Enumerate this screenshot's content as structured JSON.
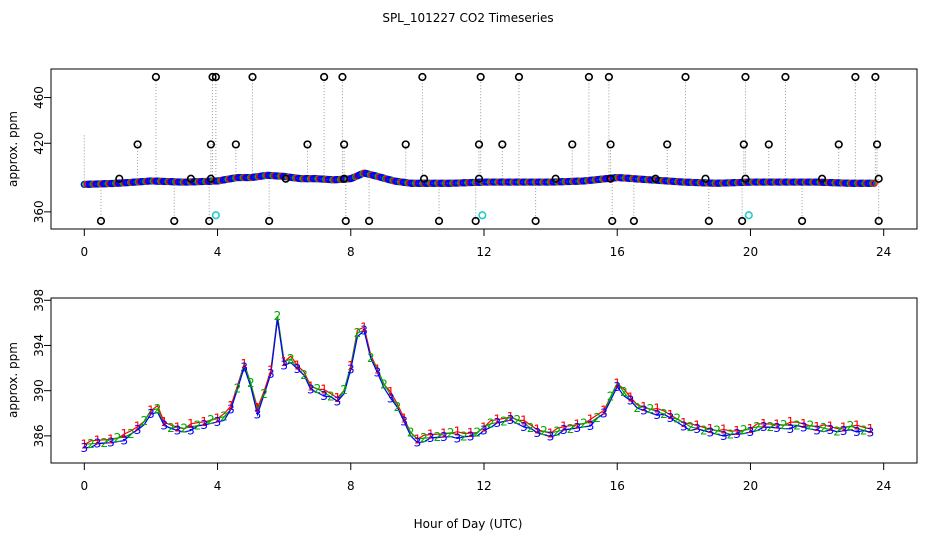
{
  "chart_data": [
    {
      "type": "scatter",
      "title": "SPL_101227  CO2 Timeseries",
      "ylabel": "approx. ppm",
      "xlim": [
        -1,
        25
      ],
      "ylim": [
        345,
        485
      ],
      "xticks": [
        0,
        4,
        8,
        12,
        16,
        20,
        24
      ],
      "yticks": [
        360,
        420,
        460
      ],
      "baseline": [
        [
          0,
          384
        ],
        [
          1,
          385
        ],
        [
          2,
          387
        ],
        [
          3,
          386
        ],
        [
          4,
          387
        ],
        [
          4.6,
          390
        ],
        [
          5,
          390
        ],
        [
          5.5,
          392
        ],
        [
          6,
          391
        ],
        [
          6.5,
          389
        ],
        [
          7,
          389
        ],
        [
          7.5,
          388
        ],
        [
          8,
          389
        ],
        [
          8.4,
          394
        ],
        [
          8.8,
          391
        ],
        [
          9.3,
          387
        ],
        [
          9.8,
          385
        ],
        [
          11,
          385
        ],
        [
          12,
          386
        ],
        [
          13,
          386
        ],
        [
          14,
          386
        ],
        [
          15,
          387
        ],
        [
          16,
          390
        ],
        [
          17,
          388
        ],
        [
          18,
          386
        ],
        [
          19,
          385
        ],
        [
          20,
          386
        ],
        [
          21,
          386
        ],
        [
          22,
          386
        ],
        [
          23,
          385
        ],
        [
          23.7,
          385
        ]
      ],
      "outliers_high": [
        2.15,
        3.85,
        3.95,
        5.05,
        7.2,
        7.75,
        10.15,
        11.9,
        13.05,
        15.15,
        15.75,
        18.05,
        19.85,
        21.05,
        23.15,
        23.75
      ],
      "outliers_mid": [
        1.6,
        3.8,
        4.55,
        6.7,
        7.8,
        9.65,
        11.85,
        12.55,
        14.65,
        15.8,
        17.5,
        19.8,
        20.55,
        22.65,
        23.8
      ],
      "outliers_low": [
        0.5,
        2.7,
        3.75,
        5.55,
        7.85,
        8.55,
        10.65,
        11.75,
        13.55,
        15.85,
        16.5,
        18.75,
        19.75,
        21.55,
        23.85
      ],
      "outliers_near": [
        1.05,
        3.2,
        3.8,
        6.05,
        7.8,
        10.2,
        11.85,
        14.15,
        15.8,
        17.15,
        18.65,
        19.85,
        22.15,
        23.85
      ],
      "cyan_markers": [
        3.95,
        11.95,
        19.95
      ],
      "high_value": 478,
      "mid_value": 419,
      "low_value": 352,
      "near_value": 389,
      "cyan_value": 357
    },
    {
      "type": "line",
      "ylabel": "approx. ppm",
      "xlim": [
        -1,
        25
      ],
      "ylim": [
        383.6,
        398.2
      ],
      "xticks": [
        0,
        4,
        8,
        12,
        16,
        20,
        24
      ],
      "yticks": [
        386,
        390,
        394,
        398
      ],
      "xlabel": "Hour of Day (UTC)",
      "series_labels": [
        "1",
        "2",
        "3"
      ],
      "series": [
        {
          "name": "1",
          "color": "#ff0000"
        },
        {
          "name": "2",
          "color": "#00aa00"
        },
        {
          "name": "3",
          "color": "#0000ff"
        }
      ],
      "x": [
        0,
        0.4,
        0.8,
        1.2,
        1.5,
        1.8,
        2.0,
        2.2,
        2.4,
        2.7,
        3.0,
        3.3,
        3.6,
        3.9,
        4.2,
        4.5,
        4.7,
        4.85,
        5.0,
        5.2,
        5.35,
        5.5,
        5.65,
        5.8,
        5.9,
        6.0,
        6.2,
        6.4,
        6.6,
        6.8,
        7.0,
        7.3,
        7.6,
        7.9,
        8.1,
        8.3,
        8.45,
        8.6,
        8.8,
        9.0,
        9.3,
        9.6,
        9.9,
        10.2,
        10.6,
        11.0,
        11.4,
        11.8,
        12.1,
        12.5,
        12.8,
        13.2,
        13.6,
        14.0,
        14.4,
        14.8,
        15.2,
        15.6,
        16.0,
        16.3,
        16.6,
        17.0,
        17.4,
        17.8,
        18.2,
        18.6,
        19.0,
        19.4,
        19.8,
        20.2,
        20.6,
        21.0,
        21.4,
        21.8,
        22.2,
        22.6,
        23.0,
        23.3,
        23.7
      ],
      "values": [
        385.2,
        385.4,
        385.6,
        385.9,
        386.4,
        387.2,
        388.2,
        388.4,
        387.0,
        386.7,
        386.6,
        386.9,
        387.1,
        387.4,
        387.7,
        388.8,
        391.8,
        392.5,
        390.6,
        388.2,
        389.2,
        390.9,
        392.0,
        396.5,
        393.4,
        392.5,
        392.8,
        392.0,
        391.5,
        390.3,
        390.1,
        389.7,
        389.2,
        390.3,
        394.0,
        396.2,
        395.0,
        393.0,
        391.8,
        390.5,
        389.2,
        387.4,
        385.6,
        385.8,
        386.0,
        386.2,
        386.0,
        386.2,
        387.0,
        387.3,
        387.6,
        387.1,
        386.4,
        386.2,
        386.6,
        386.9,
        387.2,
        388.1,
        390.6,
        389.5,
        388.6,
        388.3,
        388.0,
        387.4,
        386.8,
        386.6,
        386.4,
        386.2,
        386.4,
        386.8,
        386.9,
        386.9,
        387.0,
        386.8,
        386.7,
        386.5,
        386.8,
        386.6,
        386.4
      ]
    }
  ]
}
